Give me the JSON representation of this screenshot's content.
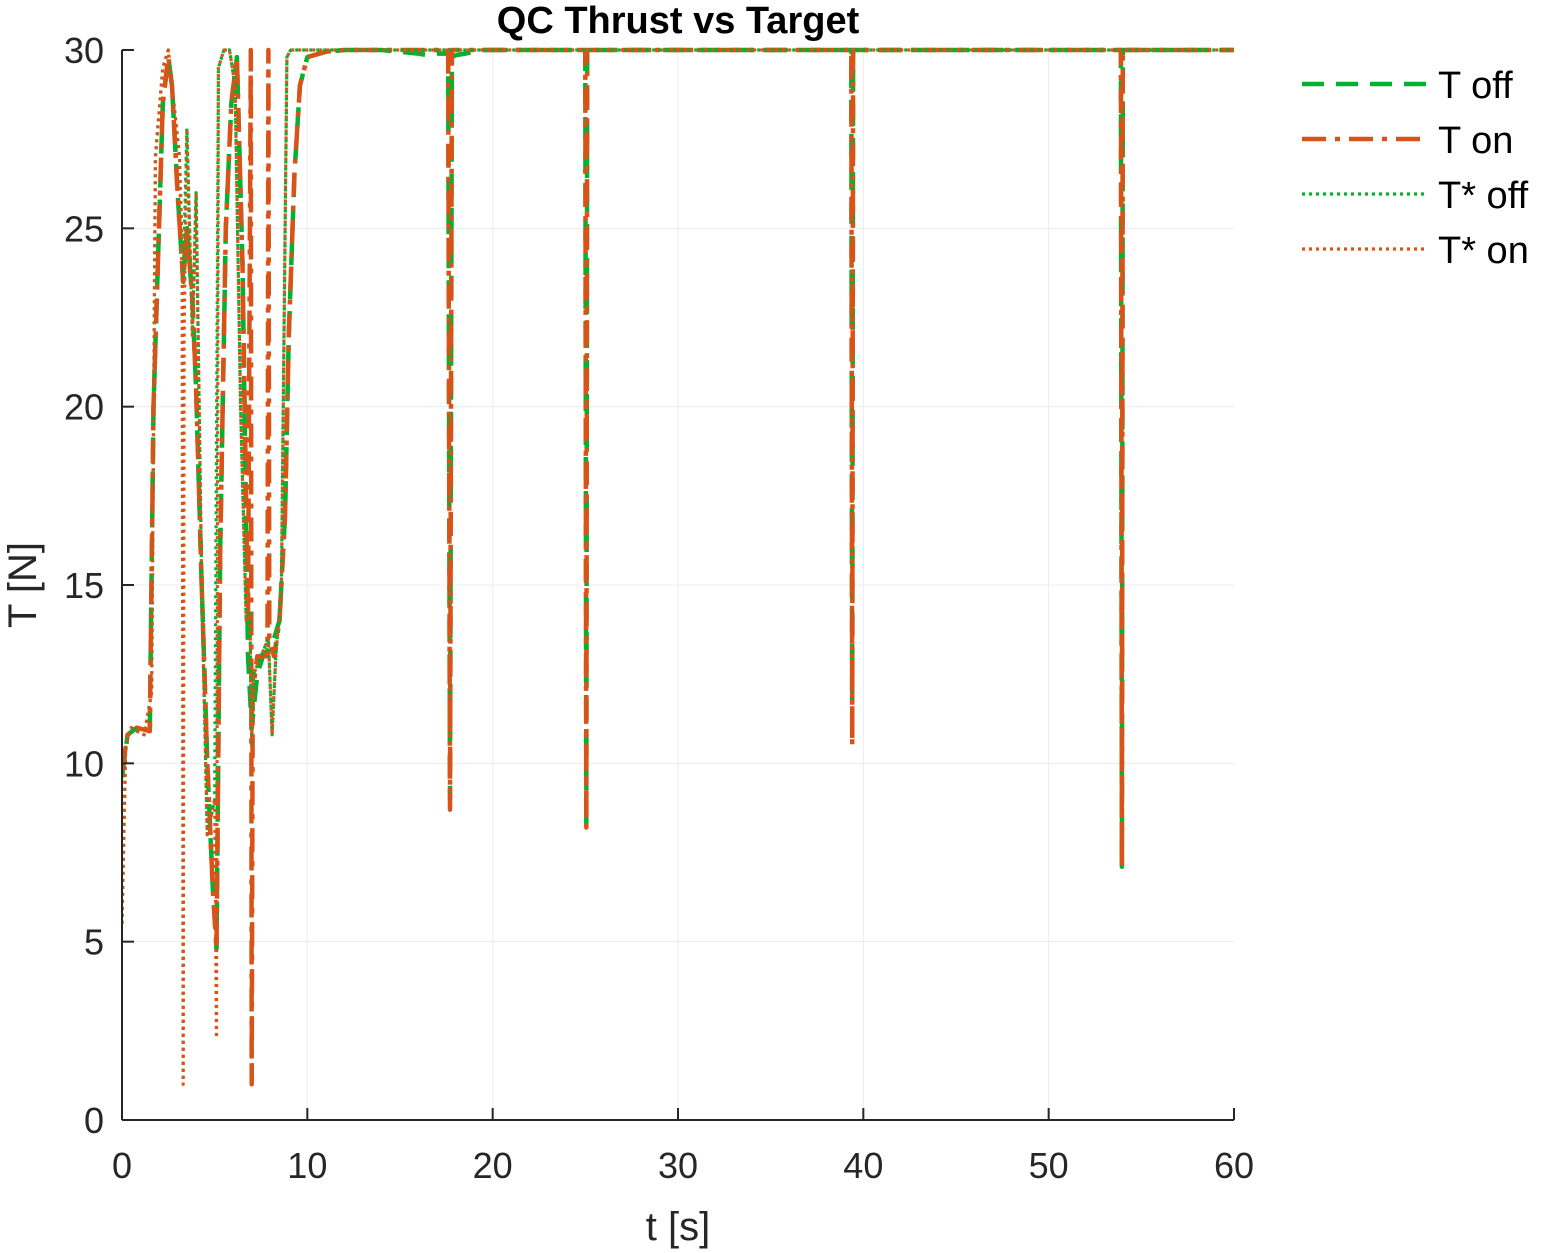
{
  "chart_data": {
    "type": "line",
    "title": "QC Thrust vs Target",
    "xlabel": "t [s]",
    "ylabel": "T [N]",
    "xlim": [
      0,
      60
    ],
    "ylim": [
      0,
      30
    ],
    "xticks": [
      0,
      10,
      20,
      30,
      40,
      50,
      60
    ],
    "yticks": [
      0,
      5,
      10,
      15,
      20,
      25,
      30
    ],
    "grid": true,
    "legend_position": "outside-top-right",
    "series": [
      {
        "name": "T off",
        "color": "#00b230",
        "style": "dashed",
        "x": [
          0,
          0.3,
          0.8,
          1.5,
          1.7,
          2.2,
          2.5,
          2.7,
          3.0,
          3.3,
          3.5,
          3.8,
          4.0,
          4.3,
          4.6,
          4.9,
          5.1,
          5.3,
          5.6,
          5.9,
          6.2,
          6.5,
          6.8,
          7.0,
          7.3,
          7.6,
          7.9,
          8.2,
          8.5,
          8.8,
          9.0,
          9.3,
          9.6,
          10.0,
          11,
          12,
          14,
          16,
          16.5,
          17,
          17.6,
          17.7,
          17.8,
          18.0,
          18.5,
          19,
          19.5,
          20,
          25,
          25.05,
          25.1,
          25.2,
          30,
          39.35,
          39.4,
          39.45,
          39.5,
          53.9,
          53.95,
          54.0,
          54.05,
          60
        ],
        "y": [
          9.6,
          10.8,
          11.0,
          10.9,
          20.0,
          28.5,
          29.8,
          29.0,
          26.0,
          23.5,
          25.0,
          23.0,
          20.5,
          15.0,
          10.0,
          6.5,
          4.8,
          16.0,
          25.0,
          28.5,
          29.8,
          24.0,
          13.0,
          11.0,
          12.5,
          13.0,
          13.2,
          13.5,
          14.0,
          17.0,
          22.0,
          26.5,
          29.0,
          29.8,
          29.95,
          30.0,
          30.0,
          29.9,
          29.85,
          29.9,
          29.9,
          9.0,
          29.8,
          29.85,
          29.9,
          29.95,
          30.0,
          30.0,
          30.0,
          8.2,
          30.0,
          30.0,
          30.0,
          30.0,
          10.6,
          30.0,
          30.0,
          30.0,
          7.1,
          30.0,
          30.0,
          30.0
        ]
      },
      {
        "name": "T on",
        "color": "#d95319",
        "style": "dashdot",
        "x": [
          0,
          0.3,
          0.8,
          1.5,
          1.7,
          2.2,
          2.5,
          2.7,
          3.0,
          3.3,
          3.5,
          3.8,
          4.0,
          4.3,
          4.6,
          4.9,
          5.1,
          5.3,
          5.6,
          5.9,
          6.2,
          6.5,
          6.8,
          6.95,
          7.0,
          7.05,
          7.3,
          7.6,
          7.85,
          7.9,
          7.95,
          8.2,
          8.5,
          8.8,
          9.0,
          9.3,
          9.6,
          10.0,
          11,
          12,
          14,
          17.6,
          17.7,
          17.8,
          18,
          25.0,
          25.05,
          25.1,
          39.35,
          39.4,
          39.45,
          53.9,
          53.95,
          54.0,
          60
        ],
        "y": [
          9.8,
          10.8,
          11.0,
          10.9,
          20.0,
          28.5,
          29.8,
          29.0,
          26.0,
          23.5,
          25.0,
          23.0,
          20.5,
          15.0,
          10.0,
          6.5,
          4.8,
          16.0,
          25.0,
          28.5,
          29.8,
          24.0,
          14.0,
          30.0,
          1.0,
          12.0,
          13.0,
          13.0,
          13.0,
          30.0,
          13.5,
          13.0,
          14.0,
          17.0,
          22.0,
          26.5,
          29.0,
          29.8,
          29.95,
          30.0,
          30.0,
          30.0,
          8.7,
          30.0,
          30.0,
          30.0,
          8.2,
          30.0,
          30.0,
          10.5,
          30.0,
          30.0,
          7.1,
          30.0,
          30.0
        ]
      },
      {
        "name": "T* off",
        "color": "#00b230",
        "style": "dotted",
        "x": [
          0,
          0.2,
          0.5,
          0.8,
          1.2,
          1.6,
          1.8,
          2.2,
          2.5,
          2.8,
          3.1,
          3.3,
          3.5,
          3.8,
          4.0,
          4.3,
          4.6,
          5.0,
          5.2,
          5.5,
          5.8,
          6.1,
          6.4,
          6.7,
          6.9,
          7.0,
          7.1,
          7.5,
          7.9,
          8.1,
          8.3,
          8.6,
          8.9,
          9.1,
          9.3,
          9.6,
          10,
          60
        ],
        "y": [
          5.5,
          10.5,
          11.0,
          10.9,
          10.8,
          12.0,
          27.0,
          29.5,
          30.0,
          28.5,
          27.0,
          23.5,
          27.8,
          22.0,
          26.0,
          15.0,
          8.0,
          9.0,
          29.5,
          30.0,
          30.0,
          29.0,
          20.0,
          14.0,
          14.2,
          10.5,
          12.5,
          13.0,
          13.5,
          10.8,
          13.0,
          15.0,
          29.8,
          30.0,
          30.0,
          30.0,
          30.0,
          30.0
        ]
      },
      {
        "name": "T* on",
        "color": "#d95319",
        "style": "dotted",
        "x": [
          0,
          0.2,
          0.5,
          0.8,
          1.2,
          1.6,
          1.8,
          2.2,
          2.5,
          2.8,
          3.1,
          3.25,
          3.3,
          3.35,
          3.5,
          3.8,
          4.0,
          4.3,
          4.6,
          5.0,
          5.1,
          5.2,
          5.5,
          5.8,
          6.1,
          6.4,
          6.7,
          6.9,
          7.0,
          7.1,
          7.5,
          7.9,
          8.1,
          8.3,
          8.6,
          8.9,
          9.1,
          9.3,
          9.6,
          10,
          60
        ],
        "y": [
          5.5,
          10.5,
          11.0,
          10.9,
          10.8,
          12.0,
          27.0,
          29.5,
          30.0,
          28.5,
          27.0,
          23.5,
          1.0,
          22.0,
          27.8,
          22.0,
          26.0,
          15.0,
          8.0,
          9.0,
          2.3,
          29.5,
          30.0,
          30.0,
          29.0,
          20.0,
          14.0,
          14.2,
          10.5,
          12.5,
          13.0,
          13.5,
          10.8,
          13.0,
          15.0,
          29.8,
          30.0,
          30.0,
          30.0,
          30.0,
          30.0
        ]
      }
    ]
  }
}
